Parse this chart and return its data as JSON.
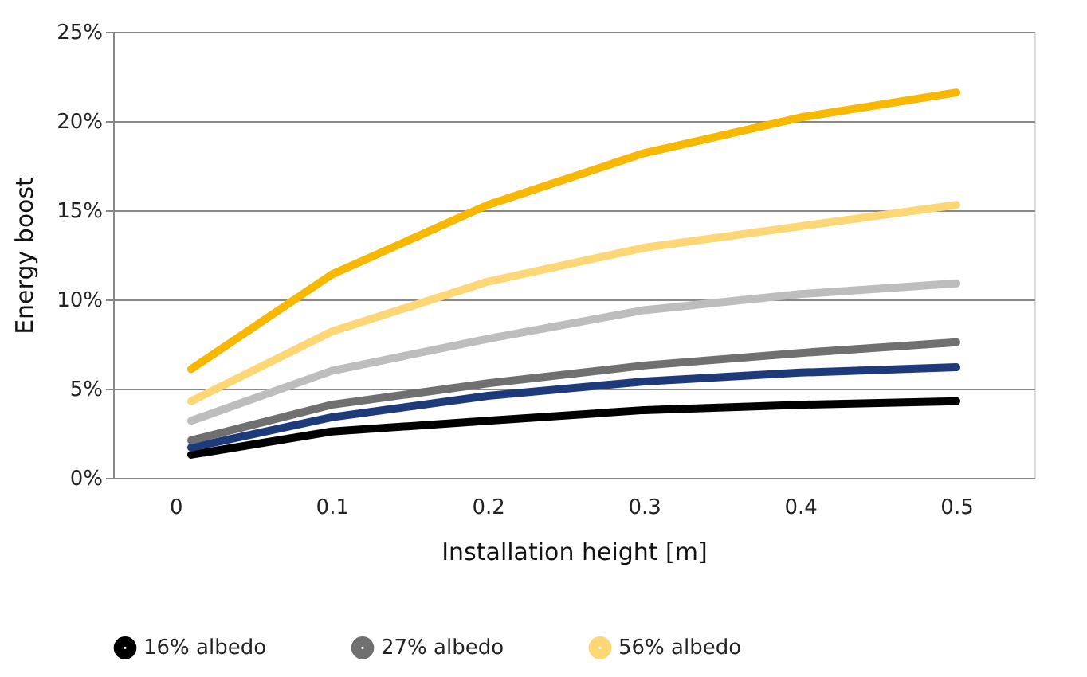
{
  "chart_data": {
    "type": "line",
    "xlabel": "Installation height [m]",
    "ylabel": "Energy boost",
    "x": [
      0.01,
      0.1,
      0.2,
      0.3,
      0.4,
      0.5
    ],
    "series": [
      {
        "name": "16% albedo",
        "color": "#000000",
        "values": [
          1.3,
          2.6,
          3.2,
          3.8,
          4.1,
          4.3
        ]
      },
      {
        "color": "#1f3a7a",
        "values": [
          1.7,
          3.4,
          4.6,
          5.4,
          5.9,
          6.2
        ]
      },
      {
        "name": "27% albedo",
        "color": "#707070",
        "values": [
          2.1,
          4.1,
          5.3,
          6.3,
          7.0,
          7.6
        ]
      },
      {
        "color": "#bdbdbd",
        "values": [
          3.2,
          6.0,
          7.8,
          9.4,
          10.3,
          10.9
        ]
      },
      {
        "name": "56% albedo",
        "color": "#fdd675",
        "values": [
          4.3,
          8.2,
          11.0,
          12.9,
          14.1,
          15.3
        ]
      },
      {
        "color": "#f8b800",
        "values": [
          6.1,
          11.4,
          15.3,
          18.2,
          20.2,
          21.6
        ]
      }
    ],
    "xlim": [
      -0.04,
      0.55
    ],
    "xticks": [
      0,
      0.1,
      0.2,
      0.3,
      0.4,
      0.5
    ],
    "ylim": [
      0,
      25
    ],
    "yticks": [
      {
        "value": 0,
        "label": "0%"
      },
      {
        "value": 5,
        "label": "5%"
      },
      {
        "value": 10,
        "label": "10%"
      },
      {
        "value": 15,
        "label": "15%"
      },
      {
        "value": 20,
        "label": "20%"
      },
      {
        "value": 25,
        "label": "25%"
      }
    ],
    "grid": "y",
    "legend": "bottom",
    "marker": "none",
    "line_style": "solid"
  }
}
